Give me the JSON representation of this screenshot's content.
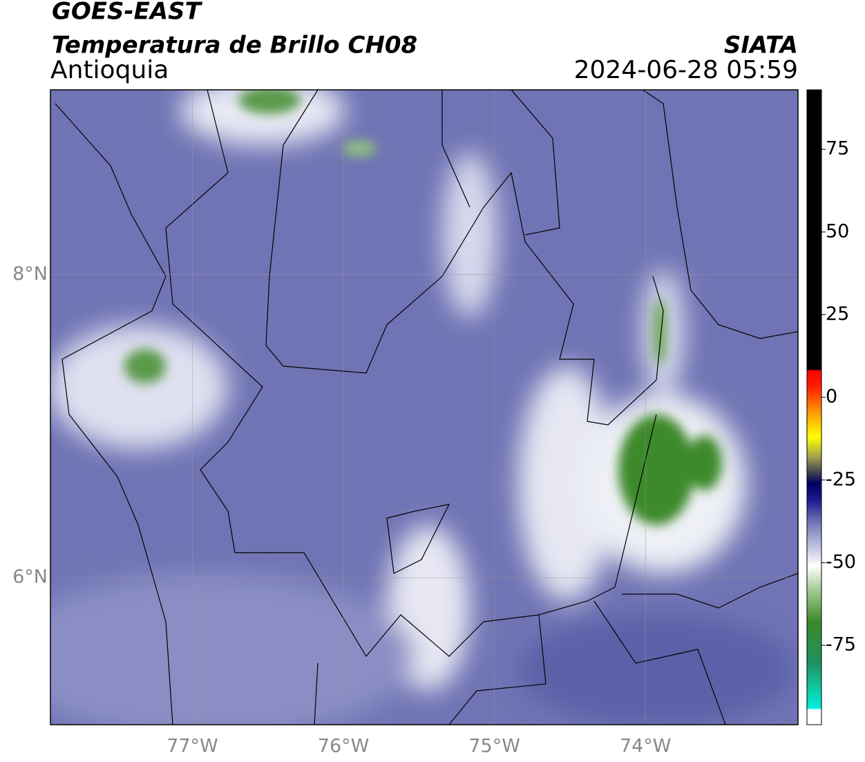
{
  "header": {
    "title": "GOES-EAST",
    "subtitle": "Temperatura de Brillo CH08",
    "region": "Antioquia",
    "source": "SIATA",
    "timestamp": "2024-06-28 05:59"
  },
  "map": {
    "lonlim": [
      -77.94,
      -72.99
    ],
    "latlim": [
      5.03,
      9.22
    ],
    "lon_ticks": [
      {
        "value": -77,
        "label": "77°W"
      },
      {
        "value": -76,
        "label": "76°W"
      },
      {
        "value": -75,
        "label": "75°W"
      },
      {
        "value": -74,
        "label": "74°W"
      }
    ],
    "lat_ticks": [
      {
        "value": 8,
        "label": "8°N"
      },
      {
        "value": 6,
        "label": "6°N"
      }
    ]
  },
  "colorbar": {
    "lim": [
      -99,
      93
    ],
    "ticks": [
      75,
      50,
      25,
      0,
      -25,
      -50,
      -75
    ],
    "colors": [
      {
        "value": -99,
        "color": "#ffffff"
      },
      {
        "value": -94.5,
        "color": "#ffffff"
      },
      {
        "value": -94,
        "color": "#00f0e0"
      },
      {
        "value": -88,
        "color": "#10c8a0"
      },
      {
        "value": -80,
        "color": "#209060"
      },
      {
        "value": -68,
        "color": "#3a8a28"
      },
      {
        "value": -58,
        "color": "#a8cc98"
      },
      {
        "value": -51,
        "color": "#ffffff"
      },
      {
        "value": -46,
        "color": "#c8cae4"
      },
      {
        "value": -38,
        "color": "#7478b8"
      },
      {
        "value": -31,
        "color": "#1a1a90"
      },
      {
        "value": -26,
        "color": "#000060"
      },
      {
        "value": -22,
        "color": "#505050"
      },
      {
        "value": -18,
        "color": "#a0a050"
      },
      {
        "value": -12,
        "color": "#ffff00"
      },
      {
        "value": -5,
        "color": "#ffa000"
      },
      {
        "value": 3,
        "color": "#ff2000"
      },
      {
        "value": 8,
        "color": "#ff0000"
      },
      {
        "value": 8.5,
        "color": "#000000"
      },
      {
        "value": 93,
        "color": "#000000"
      }
    ]
  }
}
